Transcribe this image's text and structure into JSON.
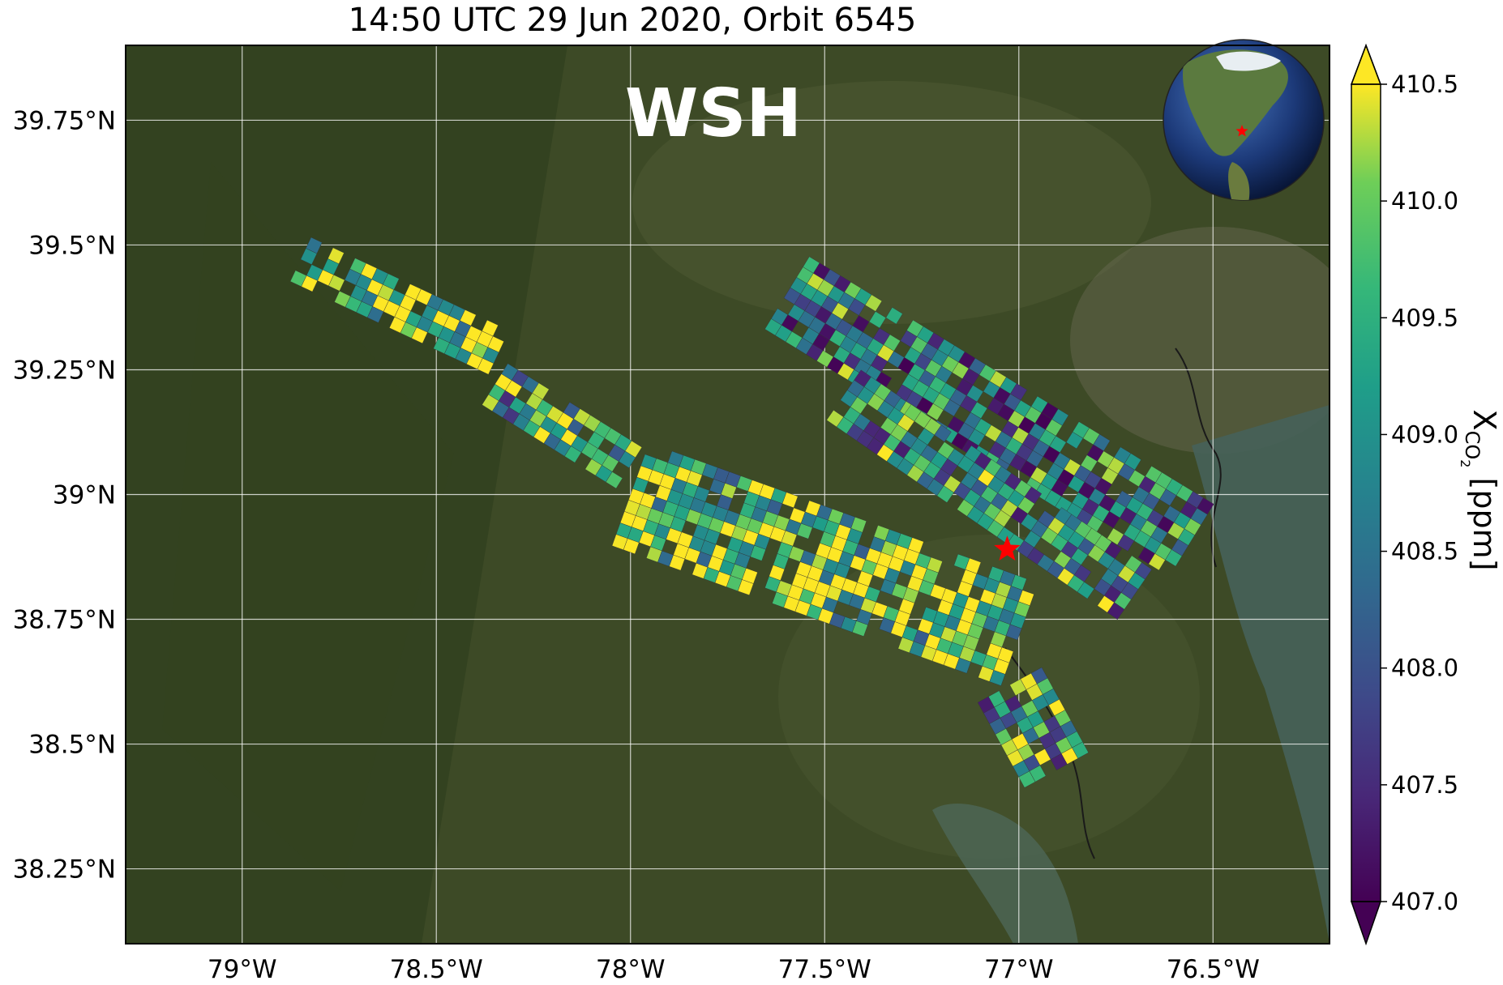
{
  "title": "14:50 UTC 29 Jun 2020, Orbit 6545",
  "site_label": "WSH",
  "site_marker": {
    "lon": -77.03,
    "lat": 38.89,
    "color": "#ff0000",
    "icon": "star-icon"
  },
  "map": {
    "lon_range": [
      -79.3,
      -76.2
    ],
    "lat_range": [
      38.1,
      39.9
    ],
    "basemap": "satellite imagery",
    "gridlines": true,
    "lon_ticks": [
      -79.0,
      -78.5,
      -78.0,
      -77.5,
      -77.0,
      -76.5
    ],
    "lon_tick_labels": [
      "79°W",
      "78.5°W",
      "78°W",
      "77.5°W",
      "77°W",
      "76.5°W"
    ],
    "lat_ticks": [
      39.75,
      39.5,
      39.25,
      39.0,
      38.75,
      38.5,
      38.25
    ],
    "lat_tick_labels": [
      "39.75°N",
      "39.5°N",
      "39.25°N",
      "39°N",
      "38.75°N",
      "38.5°N",
      "38.25°N"
    ]
  },
  "inset_globe": {
    "icon": "globe-icon",
    "marker_color": "#ff0000"
  },
  "colorbar": {
    "label_main": "X",
    "label_sub": "CO",
    "label_subsub": "2",
    "label_unit": "[ppm]",
    "vmin": 407.0,
    "vmax": 410.5,
    "extend": "both",
    "colormap": "viridis",
    "ticks": [
      407.0,
      407.5,
      408.0,
      408.5,
      409.0,
      409.5,
      410.0,
      410.5
    ],
    "tick_labels": [
      "407.0",
      "407.5",
      "408.0",
      "408.5",
      "409.0",
      "409.5",
      "410.0",
      "410.5"
    ]
  },
  "chart_data": {
    "type": "heatmap",
    "title": "14:50 UTC 29 Jun 2020, Orbit 6545",
    "xlabel": "",
    "ylabel": "",
    "value_label": "XCO2 [ppm]",
    "xlim": [
      -79.3,
      -76.2
    ],
    "ylim": [
      38.1,
      39.9
    ],
    "swaths": [
      {
        "name": "",
        "start": [
          -78.0,
          39.0
        ],
        "end": [
          -77.0,
          38.72
        ],
        "half_width": 0.11,
        "mean": 409.8
      },
      {
        "name": "",
        "start": [
          -77.6,
          39.4
        ],
        "end": [
          -76.55,
          38.9
        ],
        "half_width": 0.09,
        "mean": 408.7
      },
      {
        "name": "",
        "start": [
          -77.45,
          39.2
        ],
        "end": [
          -76.7,
          38.8
        ],
        "half_width": 0.06,
        "mean": 408.9
      },
      {
        "name": "",
        "start": [
          -77.02,
          38.62
        ],
        "end": [
          -76.9,
          38.45
        ],
        "half_width": 0.07,
        "mean": 409.0
      },
      {
        "name": "",
        "start": [
          -78.85,
          39.47
        ],
        "end": [
          -78.33,
          39.28
        ],
        "half_width": 0.05,
        "mean": 410.0
      },
      {
        "name": "",
        "start": [
          -78.35,
          39.22
        ],
        "end": [
          -78.0,
          39.05
        ],
        "half_width": 0.05,
        "mean": 409.2
      }
    ]
  }
}
